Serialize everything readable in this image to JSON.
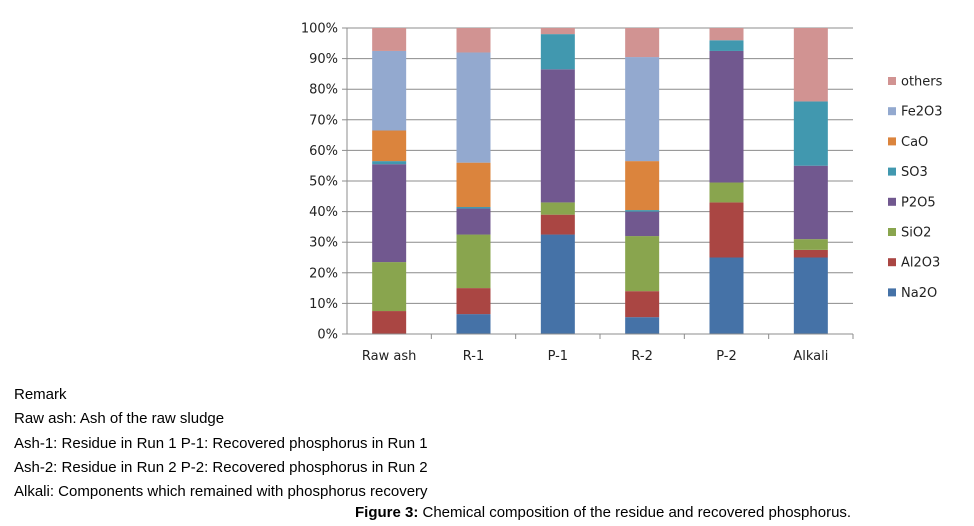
{
  "chart_data": {
    "type": "bar",
    "stacked": true,
    "percent": true,
    "categories": [
      "Raw ash",
      "R-1",
      "P-1",
      "R-2",
      "P-2",
      "Alkali"
    ],
    "ylim": [
      0,
      100
    ],
    "yticks": [
      "0%",
      "10%",
      "20%",
      "30%",
      "40%",
      "50%",
      "60%",
      "70%",
      "80%",
      "90%",
      "100%"
    ],
    "grid": true,
    "legend_position": "right",
    "series": [
      {
        "name": "Na2O",
        "color": "#4572A7",
        "values": [
          0,
          6.5,
          32.5,
          5.5,
          25,
          25
        ]
      },
      {
        "name": "Al2O3",
        "color": "#AA4643",
        "values": [
          7.5,
          8.5,
          6.5,
          8.5,
          18,
          2.5
        ]
      },
      {
        "name": "SiO2",
        "color": "#89A54E",
        "values": [
          16,
          17.5,
          4,
          18,
          6.5,
          3.5
        ]
      },
      {
        "name": "P2O5",
        "color": "#71588F",
        "values": [
          32,
          8.5,
          43.5,
          8,
          43,
          24
        ]
      },
      {
        "name": "SO3",
        "color": "#4198AF",
        "values": [
          1,
          0.5,
          11.5,
          0.5,
          3.5,
          21
        ]
      },
      {
        "name": "CaO",
        "color": "#DB843D",
        "values": [
          10,
          14.5,
          0,
          16,
          0,
          0
        ]
      },
      {
        "name": "Fe2O3",
        "color": "#93A9CF",
        "values": [
          26,
          36,
          0,
          34,
          0,
          0
        ]
      },
      {
        "name": "others",
        "color": "#D19392",
        "values": [
          7.5,
          8,
          2,
          9.5,
          4,
          24
        ]
      }
    ]
  },
  "remarks": {
    "heading": "Remark",
    "lines": [
      "Raw ash: Ash of the raw sludge",
      "Ash-1: Residue in Run 1  P-1: Recovered phosphorus in Run 1",
      "Ash-2: Residue in Run 2  P-2: Recovered phosphorus in Run 2",
      "Alkali: Components which remained with phosphorus recovery"
    ]
  },
  "caption": {
    "label": "Figure 3:",
    "text": " Chemical composition of the residue and recovered phosphorus."
  }
}
